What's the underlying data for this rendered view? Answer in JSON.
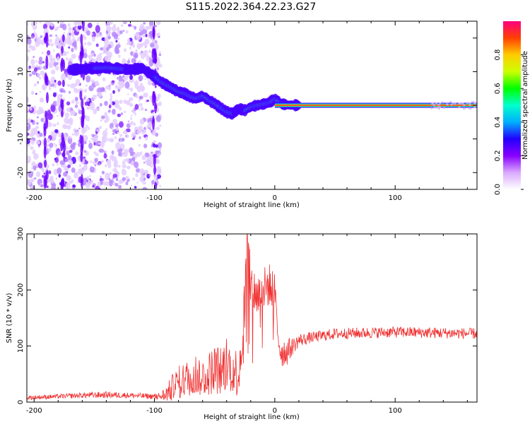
{
  "title": "S115.2022.364.22.23.G27",
  "colors": {
    "snr_line": "#f03030",
    "frame": "#000000",
    "background": "#ffffff"
  },
  "chart_data": [
    {
      "type": "heatmap",
      "xlabel": "Height of straight line (km)",
      "ylabel": "Frequency (Hz)",
      "xlim": [
        -206,
        168
      ],
      "ylim": [
        -25,
        25
      ],
      "x_ticks": [
        -200,
        -100,
        0,
        100
      ],
      "y_ticks": [
        -20,
        -10,
        0,
        10,
        20
      ],
      "colorbar": {
        "label": "Normalized spectral amplitude",
        "range": [
          0,
          1
        ],
        "ticks": [
          "0.0",
          "0.2",
          "0.4",
          "0.6",
          "0.8"
        ],
        "colormap": [
          "#ffffff",
          "#d9a9ff",
          "#8a00ff",
          "#2200ff",
          "#00b0ff",
          "#00ffcc",
          "#00ff00",
          "#ccff00",
          "#ffcc00",
          "#ff4000",
          "#ff0080"
        ]
      },
      "ridge": {
        "x": [
          -170,
          -160,
          -150,
          -140,
          -130,
          -120,
          -110,
          -100,
          -95,
          -90,
          -85,
          -80,
          -75,
          -70,
          -65,
          -60,
          -55,
          -50,
          -45,
          -40,
          -35,
          -30,
          -25,
          -20,
          -15,
          -10,
          -5,
          0,
          5,
          10,
          20,
          40,
          60,
          100,
          168
        ],
        "y": [
          10.5,
          10.8,
          11.0,
          11.2,
          10.9,
          10.6,
          11.0,
          8.5,
          7.0,
          6.0,
          5.0,
          4.0,
          3.5,
          2.5,
          2.0,
          2.8,
          1.5,
          0.5,
          -0.8,
          -2.0,
          -2.5,
          -1.0,
          -1.5,
          -0.5,
          0.0,
          0.3,
          0.8,
          1.8,
          0.5,
          0.1,
          0.0,
          0.0,
          0.0,
          0.0,
          0.0
        ]
      },
      "noise_region_x": [
        -206,
        -95
      ]
    },
    {
      "type": "line",
      "xlabel": "Height of straight line (km)",
      "ylabel": "SNR (10 * v/v)",
      "xlim": [
        -206,
        168
      ],
      "ylim": [
        0,
        300
      ],
      "x_ticks": [
        -200,
        -100,
        0,
        100
      ],
      "y_ticks": [
        0,
        100,
        200,
        300
      ],
      "series_envelope": {
        "x": [
          -206,
          -180,
          -160,
          -140,
          -120,
          -100,
          -95,
          -90,
          -85,
          -80,
          -75,
          -70,
          -65,
          -60,
          -55,
          -50,
          -45,
          -40,
          -35,
          -30,
          -25,
          -23,
          -20,
          -15,
          -10,
          -5,
          0,
          2,
          5,
          10,
          15,
          20,
          30,
          50,
          100,
          168
        ],
        "y": [
          8,
          10,
          12,
          13,
          12,
          10,
          10,
          15,
          25,
          35,
          40,
          45,
          50,
          45,
          50,
          60,
          55,
          70,
          60,
          50,
          170,
          300,
          210,
          190,
          200,
          210,
          200,
          130,
          90,
          90,
          100,
          110,
          115,
          122,
          125,
          122
        ]
      },
      "noise_amplitude": [
        4,
        4,
        5,
        6,
        5,
        5,
        8,
        15,
        25,
        30,
        32,
        35,
        40,
        35,
        40,
        45,
        45,
        50,
        45,
        45,
        60,
        20,
        45,
        40,
        40,
        40,
        30,
        35,
        30,
        25,
        15,
        12,
        10,
        10,
        10,
        10
      ]
    }
  ]
}
